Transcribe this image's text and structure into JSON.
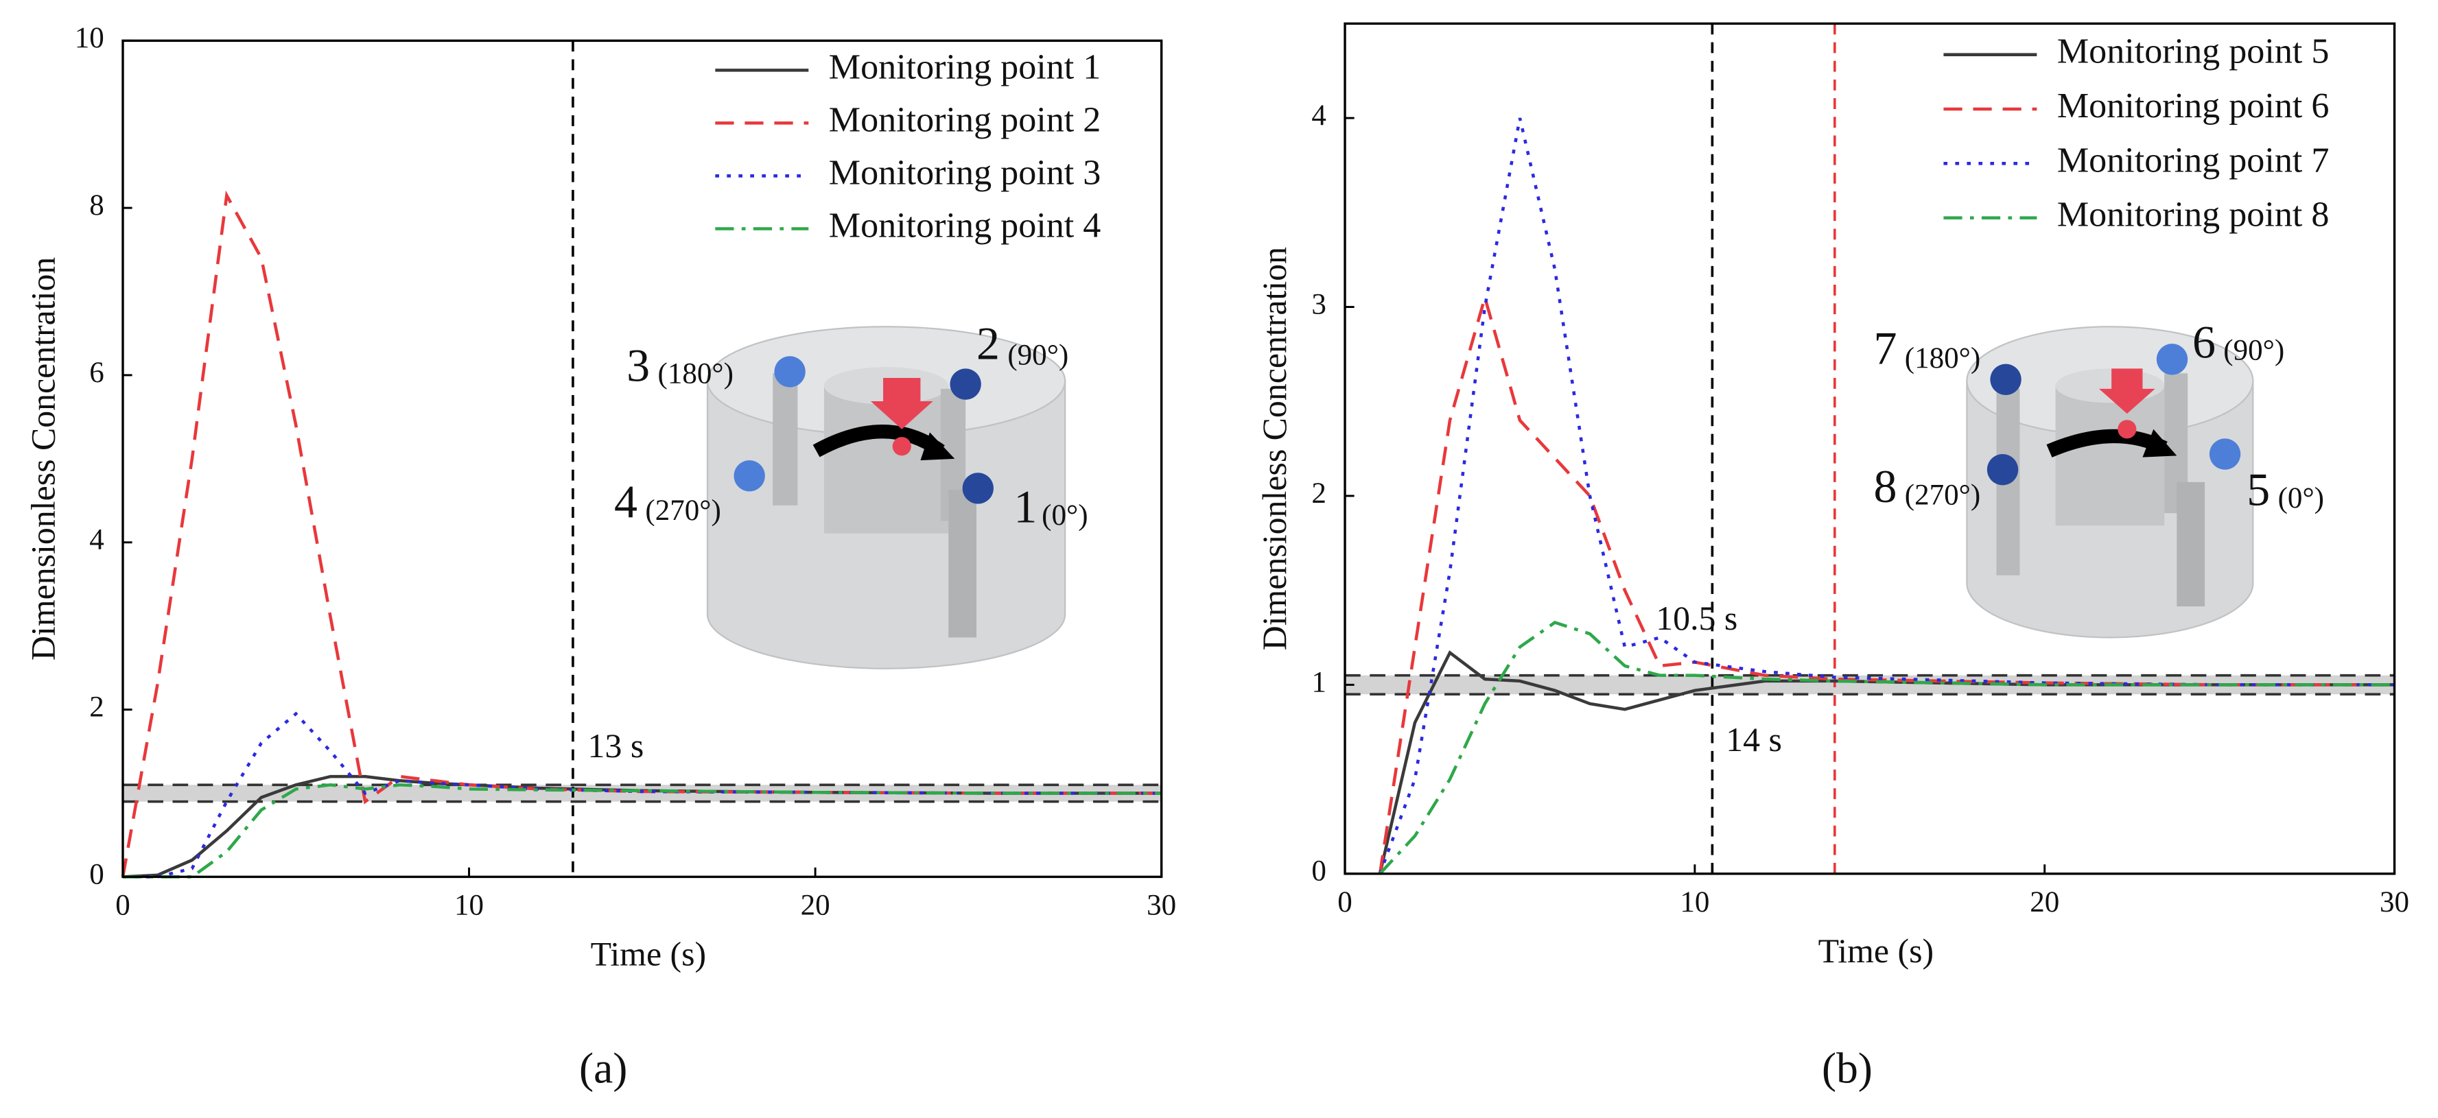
{
  "chart_data": [
    {
      "type": "line",
      "caption": "(a)",
      "x_label": "Time (s)",
      "y_label": "Dimensionless Concentration",
      "x": [
        0,
        1,
        2,
        3,
        4,
        5,
        6,
        7,
        8,
        9,
        10,
        12,
        15,
        20,
        25,
        30
      ],
      "xlim": [
        0,
        30
      ],
      "xticks": [
        0,
        10,
        20,
        30
      ],
      "ylim": [
        0,
        10
      ],
      "yticks": [
        0,
        2,
        4,
        6,
        8,
        10
      ],
      "band": [
        0.9,
        1.1
      ],
      "vlines": [
        {
          "value": 13,
          "color": "#000000",
          "label": "13 s"
        }
      ],
      "series": [
        {
          "name": "Monitoring point 1",
          "color": "#3a3a3a",
          "dash": "solid",
          "values": [
            0,
            0.02,
            0.2,
            0.55,
            0.95,
            1.1,
            1.2,
            1.2,
            1.15,
            1.12,
            1.1,
            1.06,
            1.03,
            1.01,
            1.0,
            1.0
          ]
        },
        {
          "name": "Monitoring point 2",
          "color": "#e8383b",
          "dash": "dashed",
          "values": [
            0,
            2.3,
            5.0,
            8.15,
            7.4,
            5.4,
            3.1,
            0.9,
            1.2,
            1.15,
            1.1,
            1.05,
            1.02,
            1.01,
            1.0,
            1.0
          ]
        },
        {
          "name": "Monitoring point 3",
          "color": "#2a2ae0",
          "dash": "dotted",
          "values": [
            0,
            0,
            0.1,
            0.9,
            1.6,
            1.95,
            1.5,
            1.0,
            1.15,
            1.12,
            1.1,
            1.05,
            1.02,
            1.01,
            1.0,
            1.0
          ]
        },
        {
          "name": "Monitoring point 4",
          "color": "#2ea84a",
          "dash": "dashdot",
          "values": [
            0,
            0,
            0,
            0.3,
            0.8,
            1.05,
            1.1,
            1.05,
            1.1,
            1.08,
            1.05,
            1.04,
            1.03,
            1.01,
            1.0,
            1.0
          ]
        }
      ],
      "inset": [
        {
          "number": "3",
          "angle": "(180°)"
        },
        {
          "number": "2",
          "angle": "(90°)"
        },
        {
          "number": "4",
          "angle": "(270°)"
        },
        {
          "number": "1",
          "angle": "(0°)"
        }
      ]
    },
    {
      "type": "line",
      "caption": "(b)",
      "x_label": "Time (s)",
      "y_label": "Dimensionless Concentration",
      "x": [
        1,
        2,
        3,
        4,
        5,
        6,
        7,
        8,
        9,
        10,
        12,
        14,
        20,
        25,
        30
      ],
      "xlim": [
        0,
        30
      ],
      "xticks": [
        0,
        10,
        20,
        30
      ],
      "ylim": [
        0,
        4.5
      ],
      "yticks": [
        0,
        1,
        2,
        3,
        4
      ],
      "band": [
        0.95,
        1.05
      ],
      "vlines": [
        {
          "value": 10.5,
          "color": "#000000",
          "label": "10.5 s"
        },
        {
          "value": 14,
          "color": "#e8383b",
          "label": "14 s"
        }
      ],
      "series": [
        {
          "name": "Monitoring point 5",
          "color": "#3a3a3a",
          "dash": "solid",
          "values": [
            0,
            0.8,
            1.17,
            1.03,
            1.02,
            0.97,
            0.9,
            0.87,
            0.92,
            0.97,
            1.02,
            1.02,
            1.0,
            1.0,
            1.0
          ]
        },
        {
          "name": "Monitoring point 6",
          "color": "#e8383b",
          "dash": "dashed",
          "values": [
            0,
            1.2,
            2.4,
            3.05,
            2.4,
            2.2,
            2.0,
            1.5,
            1.1,
            1.12,
            1.05,
            1.03,
            1.01,
            1.0,
            1.0
          ]
        },
        {
          "name": "Monitoring point 7",
          "color": "#2a2ae0",
          "dash": "dotted",
          "values": [
            0,
            0.5,
            1.6,
            3.0,
            4.0,
            3.2,
            2.0,
            1.2,
            1.25,
            1.12,
            1.07,
            1.04,
            1.01,
            1.0,
            1.0
          ]
        },
        {
          "name": "Monitoring point 8",
          "color": "#2ea84a",
          "dash": "dashdot",
          "values": [
            0,
            0.2,
            0.5,
            0.9,
            1.2,
            1.33,
            1.27,
            1.1,
            1.05,
            1.05,
            1.03,
            1.02,
            1.0,
            1.0,
            1.0
          ]
        }
      ],
      "inset": [
        {
          "number": "7",
          "angle": "(180°)"
        },
        {
          "number": "6",
          "angle": "(90°)"
        },
        {
          "number": "8",
          "angle": "(270°)"
        },
        {
          "number": "5",
          "angle": "(0°)"
        }
      ]
    }
  ]
}
